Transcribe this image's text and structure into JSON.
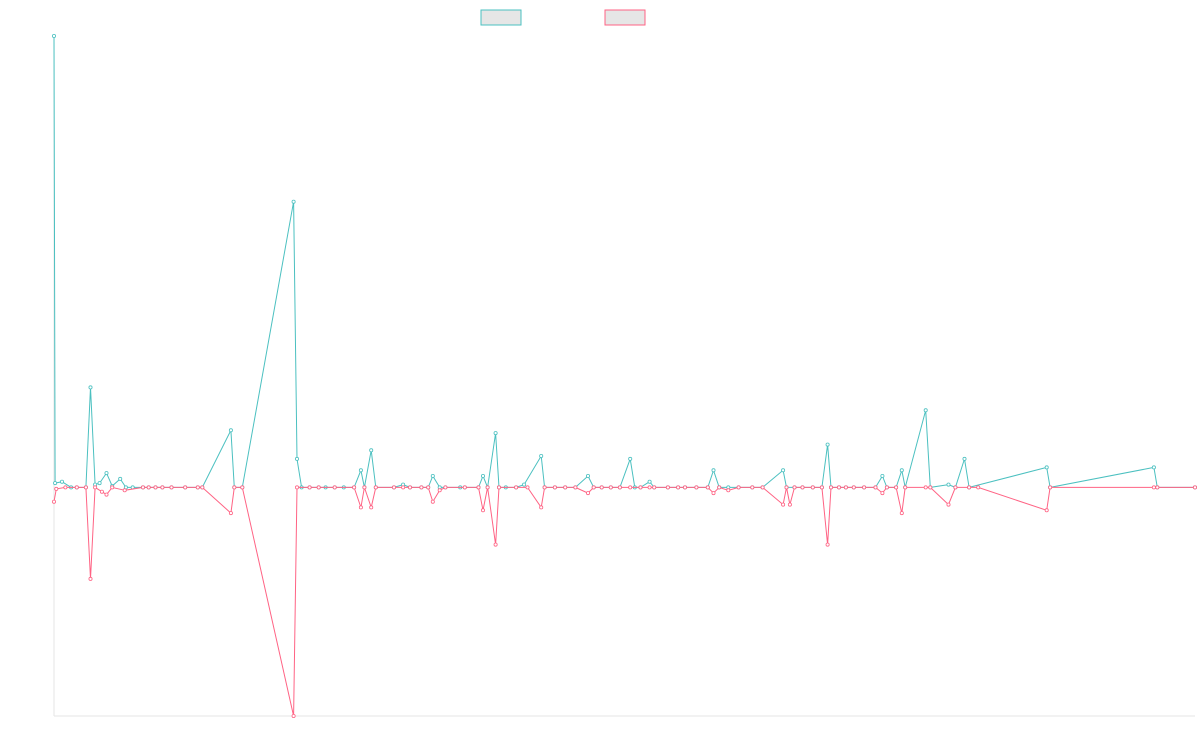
{
  "chart_data": {
    "type": "line",
    "title": "",
    "xlabel": "",
    "ylabel": "",
    "legend": {
      "placement": "top-center",
      "show_labels": false
    },
    "grid": false,
    "ylim": [
      -80,
      158
    ],
    "xlim": [
      0,
      100
    ],
    "colors": {
      "series_1": "#4bc0c0",
      "series_2": "#ff6384",
      "legend_fill": "#e6e6e6",
      "axis": "#e6e6e6"
    },
    "series": [
      {
        "color": "#4bc0c0",
        "values": [
          [
            0,
            158
          ],
          [
            0.1,
            1.5
          ],
          [
            0.7,
            2
          ],
          [
            1.5,
            0
          ],
          [
            2,
            0
          ],
          [
            2.8,
            0
          ],
          [
            3.2,
            35
          ],
          [
            3.6,
            1
          ],
          [
            4,
            1.5
          ],
          [
            4.6,
            5
          ],
          [
            5.1,
            0.5
          ],
          [
            5.8,
            3
          ],
          [
            6.3,
            0
          ],
          [
            6.9,
            0
          ],
          [
            7.8,
            0
          ],
          [
            8.3,
            0
          ],
          [
            8.9,
            0
          ],
          [
            9.5,
            0
          ],
          [
            10.3,
            0
          ],
          [
            11.5,
            0
          ],
          [
            12.6,
            0
          ],
          [
            13,
            0
          ],
          [
            15.5,
            20
          ],
          [
            15.8,
            0
          ],
          [
            16.5,
            0
          ],
          [
            21,
            100
          ],
          [
            21.3,
            10
          ],
          [
            21.7,
            0
          ],
          [
            22.4,
            0
          ],
          [
            23.2,
            0
          ],
          [
            23.8,
            0
          ],
          [
            24.6,
            0
          ],
          [
            25.4,
            0
          ],
          [
            26.3,
            0
          ],
          [
            26.9,
            6
          ],
          [
            27.2,
            0
          ],
          [
            27.8,
            13
          ],
          [
            28.2,
            0
          ],
          [
            29.8,
            0
          ],
          [
            30.6,
            1
          ],
          [
            31.2,
            0
          ],
          [
            32.2,
            0
          ],
          [
            32.8,
            0
          ],
          [
            33.2,
            4
          ],
          [
            33.8,
            0
          ],
          [
            34.3,
            0
          ],
          [
            35.6,
            0
          ],
          [
            36,
            0
          ],
          [
            37.2,
            0
          ],
          [
            37.6,
            4
          ],
          [
            38,
            0
          ],
          [
            38.7,
            19
          ],
          [
            39,
            0
          ],
          [
            39.6,
            0
          ],
          [
            40.5,
            0
          ],
          [
            41.2,
            1
          ],
          [
            42.7,
            11
          ],
          [
            43,
            0
          ],
          [
            43.9,
            0
          ],
          [
            44.8,
            0
          ],
          [
            45.7,
            0
          ],
          [
            46.8,
            4
          ],
          [
            47.3,
            0
          ],
          [
            48,
            0
          ],
          [
            48.8,
            0
          ],
          [
            49.6,
            0
          ],
          [
            50.5,
            10
          ],
          [
            50.9,
            0
          ],
          [
            51.4,
            0
          ],
          [
            52.2,
            2
          ],
          [
            52.6,
            0
          ],
          [
            53.8,
            0
          ],
          [
            54.7,
            0
          ],
          [
            55.3,
            0
          ],
          [
            56.3,
            0
          ],
          [
            57.3,
            0
          ],
          [
            57.8,
            6
          ],
          [
            58.3,
            0
          ],
          [
            59.1,
            0
          ],
          [
            60,
            0
          ],
          [
            61.2,
            0
          ],
          [
            62.1,
            0
          ],
          [
            63.9,
            6
          ],
          [
            64.2,
            0
          ],
          [
            64.9,
            0
          ],
          [
            65.6,
            0
          ],
          [
            66.5,
            0
          ],
          [
            67.3,
            0
          ],
          [
            67.8,
            15
          ],
          [
            68.1,
            0
          ],
          [
            68.8,
            0
          ],
          [
            69.4,
            0
          ],
          [
            70.1,
            0
          ],
          [
            71,
            0
          ],
          [
            72,
            0
          ],
          [
            72.6,
            4
          ],
          [
            73,
            0
          ],
          [
            73.8,
            0
          ],
          [
            74.3,
            6
          ],
          [
            74.6,
            0
          ],
          [
            76.4,
            27
          ],
          [
            76.8,
            0
          ],
          [
            78.4,
            1
          ],
          [
            79,
            0
          ],
          [
            79.8,
            10
          ],
          [
            80.2,
            0
          ],
          [
            87,
            7
          ],
          [
            87.3,
            0
          ],
          [
            96.4,
            7
          ],
          [
            96.7,
            0
          ],
          [
            100,
            0
          ]
        ]
      },
      {
        "color": "#ff6384",
        "values": [
          [
            0,
            -5
          ],
          [
            0.2,
            -0.5
          ],
          [
            1,
            0
          ],
          [
            2,
            0
          ],
          [
            2.8,
            0
          ],
          [
            3.2,
            -32
          ],
          [
            3.6,
            0
          ],
          [
            4.2,
            -1.5
          ],
          [
            4.6,
            -2.5
          ],
          [
            5.1,
            0
          ],
          [
            6.2,
            -1
          ],
          [
            7.8,
            0
          ],
          [
            8.3,
            0
          ],
          [
            8.9,
            0
          ],
          [
            9.5,
            0
          ],
          [
            10.3,
            0
          ],
          [
            11.5,
            0
          ],
          [
            12.6,
            0
          ],
          [
            13,
            0
          ],
          [
            15.5,
            -9
          ],
          [
            15.8,
            0
          ],
          [
            16.5,
            0
          ],
          [
            21,
            -80
          ],
          [
            21.3,
            0
          ],
          [
            22.4,
            0
          ],
          [
            23.2,
            0
          ],
          [
            24.6,
            0
          ],
          [
            26.3,
            0
          ],
          [
            26.9,
            -7
          ],
          [
            27.2,
            0
          ],
          [
            27.8,
            -7
          ],
          [
            28.2,
            0
          ],
          [
            29.8,
            0
          ],
          [
            30.6,
            0
          ],
          [
            31.2,
            0
          ],
          [
            32.2,
            0
          ],
          [
            32.8,
            0
          ],
          [
            33.2,
            -5
          ],
          [
            33.8,
            -1
          ],
          [
            34.3,
            0
          ],
          [
            36,
            0
          ],
          [
            37.2,
            0
          ],
          [
            37.6,
            -8
          ],
          [
            38,
            0
          ],
          [
            38.7,
            -20
          ],
          [
            39,
            0
          ],
          [
            40.5,
            0
          ],
          [
            41.5,
            0
          ],
          [
            42.7,
            -7
          ],
          [
            43,
            0
          ],
          [
            43.9,
            0
          ],
          [
            44.8,
            0
          ],
          [
            45.7,
            0
          ],
          [
            46.8,
            -2
          ],
          [
            47.3,
            0
          ],
          [
            48,
            0
          ],
          [
            48.8,
            0
          ],
          [
            49.6,
            0
          ],
          [
            50.5,
            0
          ],
          [
            51.4,
            0
          ],
          [
            52.2,
            0
          ],
          [
            52.6,
            0
          ],
          [
            53.8,
            0
          ],
          [
            54.7,
            0
          ],
          [
            55.3,
            0
          ],
          [
            56.3,
            0
          ],
          [
            57.3,
            0
          ],
          [
            57.8,
            -2
          ],
          [
            58.3,
            0
          ],
          [
            59.1,
            -1
          ],
          [
            60,
            0
          ],
          [
            61.2,
            0
          ],
          [
            62.1,
            0
          ],
          [
            63.9,
            -6
          ],
          [
            64.2,
            0
          ],
          [
            64.5,
            -6
          ],
          [
            64.9,
            0
          ],
          [
            65.6,
            0
          ],
          [
            66.5,
            0
          ],
          [
            67.3,
            0
          ],
          [
            67.8,
            -20
          ],
          [
            68.1,
            0
          ],
          [
            68.8,
            0
          ],
          [
            69.4,
            0
          ],
          [
            70.1,
            0
          ],
          [
            71,
            0
          ],
          [
            72,
            0
          ],
          [
            72.6,
            -2
          ],
          [
            73,
            0
          ],
          [
            73.8,
            0
          ],
          [
            74.3,
            -9
          ],
          [
            74.6,
            0
          ],
          [
            76.4,
            0
          ],
          [
            76.8,
            0
          ],
          [
            78.4,
            -6
          ],
          [
            79,
            0
          ],
          [
            80.2,
            0
          ],
          [
            81,
            0
          ],
          [
            87,
            -8
          ],
          [
            87.3,
            0
          ],
          [
            96.4,
            0
          ],
          [
            96.7,
            0
          ],
          [
            100,
            0
          ]
        ]
      }
    ]
  }
}
